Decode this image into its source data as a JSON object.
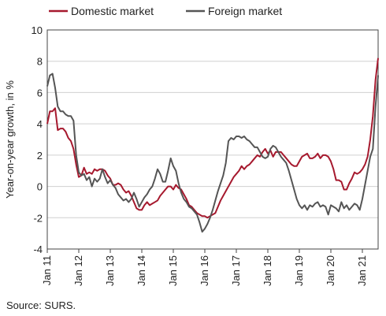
{
  "chart_data": {
    "type": "line",
    "ylabel": "Year-on-year growth, in %",
    "ylim": [
      -4,
      10
    ],
    "yticks": [
      -4,
      -2,
      0,
      2,
      4,
      6,
      8,
      10
    ],
    "xlim": [
      "2011-01",
      "2021-07"
    ],
    "xticks": [
      "Jan 11",
      "Jan 12",
      "Jan 13",
      "Jan 14",
      "Jan 15",
      "Jan 16",
      "Jan 17",
      "Jan 18",
      "Jan 19",
      "Jan 20",
      "Jan 21"
    ],
    "grid": "horizontal",
    "legend": "top-left",
    "source": "Source: SURS.",
    "series": [
      {
        "name": "Domestic market",
        "color": "#a6192e",
        "points": [
          [
            "2011-01",
            4.0
          ],
          [
            "2011-02",
            4.8
          ],
          [
            "2011-03",
            4.8
          ],
          [
            "2011-04",
            5.0
          ],
          [
            "2011-05",
            3.6
          ],
          [
            "2011-06",
            3.7
          ],
          [
            "2011-07",
            3.7
          ],
          [
            "2011-08",
            3.5
          ],
          [
            "2011-09",
            3.1
          ],
          [
            "2011-10",
            2.9
          ],
          [
            "2011-11",
            2.4
          ],
          [
            "2011-12",
            1.4
          ],
          [
            "2012-01",
            0.6
          ],
          [
            "2012-02",
            0.7
          ],
          [
            "2012-03",
            1.2
          ],
          [
            "2012-04",
            0.8
          ],
          [
            "2012-05",
            0.9
          ],
          [
            "2012-06",
            0.8
          ],
          [
            "2012-07",
            1.1
          ],
          [
            "2012-08",
            1.0
          ],
          [
            "2012-09",
            1.1
          ],
          [
            "2012-10",
            1.1
          ],
          [
            "2012-11",
            1.0
          ],
          [
            "2012-12",
            0.7
          ],
          [
            "2013-01",
            0.5
          ],
          [
            "2013-02",
            0.1
          ],
          [
            "2013-03",
            0.1
          ],
          [
            "2013-04",
            0.2
          ],
          [
            "2013-05",
            0.1
          ],
          [
            "2013-06",
            -0.2
          ],
          [
            "2013-07",
            -0.4
          ],
          [
            "2013-08",
            -0.3
          ],
          [
            "2013-09",
            -0.6
          ],
          [
            "2013-10",
            -1.0
          ],
          [
            "2013-11",
            -1.4
          ],
          [
            "2013-12",
            -1.5
          ],
          [
            "2014-01",
            -1.5
          ],
          [
            "2014-02",
            -1.2
          ],
          [
            "2014-03",
            -1.0
          ],
          [
            "2014-04",
            -1.2
          ],
          [
            "2014-05",
            -1.1
          ],
          [
            "2014-06",
            -1.0
          ],
          [
            "2014-07",
            -0.9
          ],
          [
            "2014-08",
            -0.6
          ],
          [
            "2014-09",
            -0.4
          ],
          [
            "2014-10",
            -0.2
          ],
          [
            "2014-11",
            0.0
          ],
          [
            "2014-12",
            0.0
          ],
          [
            "2015-01",
            -0.2
          ],
          [
            "2015-02",
            0.1
          ],
          [
            "2015-03",
            -0.1
          ],
          [
            "2015-04",
            -0.2
          ],
          [
            "2015-05",
            -0.5
          ],
          [
            "2015-06",
            -0.8
          ],
          [
            "2015-07",
            -1.2
          ],
          [
            "2015-08",
            -1.3
          ],
          [
            "2015-09",
            -1.5
          ],
          [
            "2015-10",
            -1.7
          ],
          [
            "2015-11",
            -1.8
          ],
          [
            "2015-12",
            -1.9
          ],
          [
            "2016-01",
            -1.9
          ],
          [
            "2016-02",
            -2.0
          ],
          [
            "2016-03",
            -1.9
          ],
          [
            "2016-04",
            -1.8
          ],
          [
            "2016-05",
            -1.7
          ],
          [
            "2016-06",
            -1.3
          ],
          [
            "2016-07",
            -0.9
          ],
          [
            "2016-08",
            -0.6
          ],
          [
            "2016-09",
            -0.3
          ],
          [
            "2016-10",
            0.0
          ],
          [
            "2016-11",
            0.3
          ],
          [
            "2016-12",
            0.6
          ],
          [
            "2017-01",
            0.8
          ],
          [
            "2017-02",
            1.0
          ],
          [
            "2017-03",
            1.3
          ],
          [
            "2017-04",
            1.1
          ],
          [
            "2017-05",
            1.3
          ],
          [
            "2017-06",
            1.4
          ],
          [
            "2017-07",
            1.6
          ],
          [
            "2017-08",
            1.8
          ],
          [
            "2017-09",
            2.0
          ],
          [
            "2017-10",
            1.9
          ],
          [
            "2017-11",
            2.2
          ],
          [
            "2017-12",
            2.4
          ],
          [
            "2018-01",
            2.1
          ],
          [
            "2018-02",
            2.3
          ],
          [
            "2018-03",
            1.9
          ],
          [
            "2018-04",
            2.2
          ],
          [
            "2018-05",
            2.2
          ],
          [
            "2018-06",
            2.2
          ],
          [
            "2018-07",
            2.0
          ],
          [
            "2018-08",
            1.8
          ],
          [
            "2018-09",
            1.6
          ],
          [
            "2018-10",
            1.4
          ],
          [
            "2018-11",
            1.3
          ],
          [
            "2018-12",
            1.3
          ],
          [
            "2019-01",
            1.6
          ],
          [
            "2019-02",
            1.9
          ],
          [
            "2019-03",
            2.0
          ],
          [
            "2019-04",
            2.1
          ],
          [
            "2019-05",
            1.8
          ],
          [
            "2019-06",
            1.8
          ],
          [
            "2019-07",
            1.9
          ],
          [
            "2019-08",
            2.1
          ],
          [
            "2019-09",
            1.8
          ],
          [
            "2019-10",
            2.0
          ],
          [
            "2019-11",
            2.0
          ],
          [
            "2019-12",
            1.9
          ],
          [
            "2020-01",
            1.6
          ],
          [
            "2020-02",
            1.1
          ],
          [
            "2020-03",
            0.4
          ],
          [
            "2020-04",
            0.4
          ],
          [
            "2020-05",
            0.3
          ],
          [
            "2020-06",
            -0.2
          ],
          [
            "2020-07",
            -0.2
          ],
          [
            "2020-08",
            0.2
          ],
          [
            "2020-09",
            0.5
          ],
          [
            "2020-10",
            0.9
          ],
          [
            "2020-11",
            0.8
          ],
          [
            "2020-12",
            0.9
          ],
          [
            "2021-01",
            1.1
          ],
          [
            "2021-02",
            1.4
          ],
          [
            "2021-03",
            1.9
          ],
          [
            "2021-04",
            3.0
          ],
          [
            "2021-05",
            4.5
          ],
          [
            "2021-06",
            6.8
          ],
          [
            "2021-07",
            8.2
          ]
        ]
      },
      {
        "name": "Foreign market",
        "color": "#555555",
        "points": [
          [
            "2011-01",
            6.4
          ],
          [
            "2011-02",
            7.1
          ],
          [
            "2011-03",
            7.2
          ],
          [
            "2011-04",
            6.3
          ],
          [
            "2011-05",
            5.1
          ],
          [
            "2011-06",
            4.8
          ],
          [
            "2011-07",
            4.8
          ],
          [
            "2011-08",
            4.6
          ],
          [
            "2011-09",
            4.5
          ],
          [
            "2011-10",
            4.5
          ],
          [
            "2011-11",
            4.2
          ],
          [
            "2011-12",
            2.0
          ],
          [
            "2012-01",
            0.9
          ],
          [
            "2012-02",
            0.7
          ],
          [
            "2012-03",
            0.8
          ],
          [
            "2012-04",
            0.4
          ],
          [
            "2012-05",
            0.6
          ],
          [
            "2012-06",
            0.0
          ],
          [
            "2012-07",
            0.5
          ],
          [
            "2012-08",
            0.3
          ],
          [
            "2012-09",
            0.5
          ],
          [
            "2012-10",
            1.1
          ],
          [
            "2012-11",
            0.6
          ],
          [
            "2012-12",
            0.2
          ],
          [
            "2013-01",
            0.4
          ],
          [
            "2013-02",
            0.1
          ],
          [
            "2013-03",
            -0.1
          ],
          [
            "2013-04",
            -0.5
          ],
          [
            "2013-05",
            -0.7
          ],
          [
            "2013-06",
            -0.9
          ],
          [
            "2013-07",
            -0.8
          ],
          [
            "2013-08",
            -1.0
          ],
          [
            "2013-09",
            -0.8
          ],
          [
            "2013-10",
            -0.4
          ],
          [
            "2013-11",
            -0.8
          ],
          [
            "2013-12",
            -1.3
          ],
          [
            "2014-01",
            -1.0
          ],
          [
            "2014-02",
            -0.7
          ],
          [
            "2014-03",
            -0.5
          ],
          [
            "2014-04",
            -0.2
          ],
          [
            "2014-05",
            0.0
          ],
          [
            "2014-06",
            0.5
          ],
          [
            "2014-07",
            1.1
          ],
          [
            "2014-08",
            0.8
          ],
          [
            "2014-09",
            0.3
          ],
          [
            "2014-10",
            0.3
          ],
          [
            "2014-11",
            1.0
          ],
          [
            "2014-12",
            1.8
          ],
          [
            "2015-01",
            1.3
          ],
          [
            "2015-02",
            1.0
          ],
          [
            "2015-03",
            0.2
          ],
          [
            "2015-04",
            -0.4
          ],
          [
            "2015-05",
            -0.8
          ],
          [
            "2015-06",
            -1.0
          ],
          [
            "2015-07",
            -1.3
          ],
          [
            "2015-08",
            -1.4
          ],
          [
            "2015-09",
            -1.6
          ],
          [
            "2015-10",
            -1.8
          ],
          [
            "2015-11",
            -2.3
          ],
          [
            "2015-12",
            -2.9
          ],
          [
            "2016-01",
            -2.7
          ],
          [
            "2016-02",
            -2.4
          ],
          [
            "2016-03",
            -2.0
          ],
          [
            "2016-04",
            -1.5
          ],
          [
            "2016-05",
            -0.9
          ],
          [
            "2016-06",
            -0.3
          ],
          [
            "2016-07",
            0.2
          ],
          [
            "2016-08",
            0.7
          ],
          [
            "2016-09",
            1.5
          ],
          [
            "2016-10",
            2.9
          ],
          [
            "2016-11",
            3.1
          ],
          [
            "2016-12",
            3.0
          ],
          [
            "2017-01",
            3.2
          ],
          [
            "2017-02",
            3.2
          ],
          [
            "2017-03",
            3.1
          ],
          [
            "2017-04",
            3.2
          ],
          [
            "2017-05",
            3.0
          ],
          [
            "2017-06",
            2.9
          ],
          [
            "2017-07",
            2.7
          ],
          [
            "2017-08",
            2.5
          ],
          [
            "2017-09",
            2.5
          ],
          [
            "2017-10",
            2.2
          ],
          [
            "2017-11",
            1.9
          ],
          [
            "2017-12",
            1.8
          ],
          [
            "2018-01",
            1.9
          ],
          [
            "2018-02",
            2.4
          ],
          [
            "2018-03",
            2.6
          ],
          [
            "2018-04",
            2.5
          ],
          [
            "2018-05",
            2.2
          ],
          [
            "2018-06",
            1.9
          ],
          [
            "2018-07",
            1.7
          ],
          [
            "2018-08",
            1.5
          ],
          [
            "2018-09",
            1.0
          ],
          [
            "2018-10",
            0.4
          ],
          [
            "2018-11",
            -0.2
          ],
          [
            "2018-12",
            -0.8
          ],
          [
            "2019-01",
            -1.2
          ],
          [
            "2019-02",
            -1.4
          ],
          [
            "2019-03",
            -1.2
          ],
          [
            "2019-04",
            -1.5
          ],
          [
            "2019-05",
            -1.2
          ],
          [
            "2019-06",
            -1.3
          ],
          [
            "2019-07",
            -1.1
          ],
          [
            "2019-08",
            -1.0
          ],
          [
            "2019-09",
            -1.3
          ],
          [
            "2019-10",
            -1.2
          ],
          [
            "2019-11",
            -1.3
          ],
          [
            "2019-12",
            -1.8
          ],
          [
            "2020-01",
            -1.2
          ],
          [
            "2020-02",
            -1.3
          ],
          [
            "2020-03",
            -1.4
          ],
          [
            "2020-04",
            -1.6
          ],
          [
            "2020-05",
            -1.0
          ],
          [
            "2020-06",
            -1.4
          ],
          [
            "2020-07",
            -1.2
          ],
          [
            "2020-08",
            -1.5
          ],
          [
            "2020-09",
            -1.3
          ],
          [
            "2020-10",
            -1.1
          ],
          [
            "2020-11",
            -1.2
          ],
          [
            "2020-12",
            -1.5
          ],
          [
            "2021-01",
            -0.8
          ],
          [
            "2021-02",
            0.1
          ],
          [
            "2021-03",
            1.0
          ],
          [
            "2021-04",
            1.9
          ],
          [
            "2021-05",
            2.4
          ],
          [
            "2021-06",
            5.1
          ],
          [
            "2021-07",
            7.1
          ]
        ]
      }
    ]
  }
}
